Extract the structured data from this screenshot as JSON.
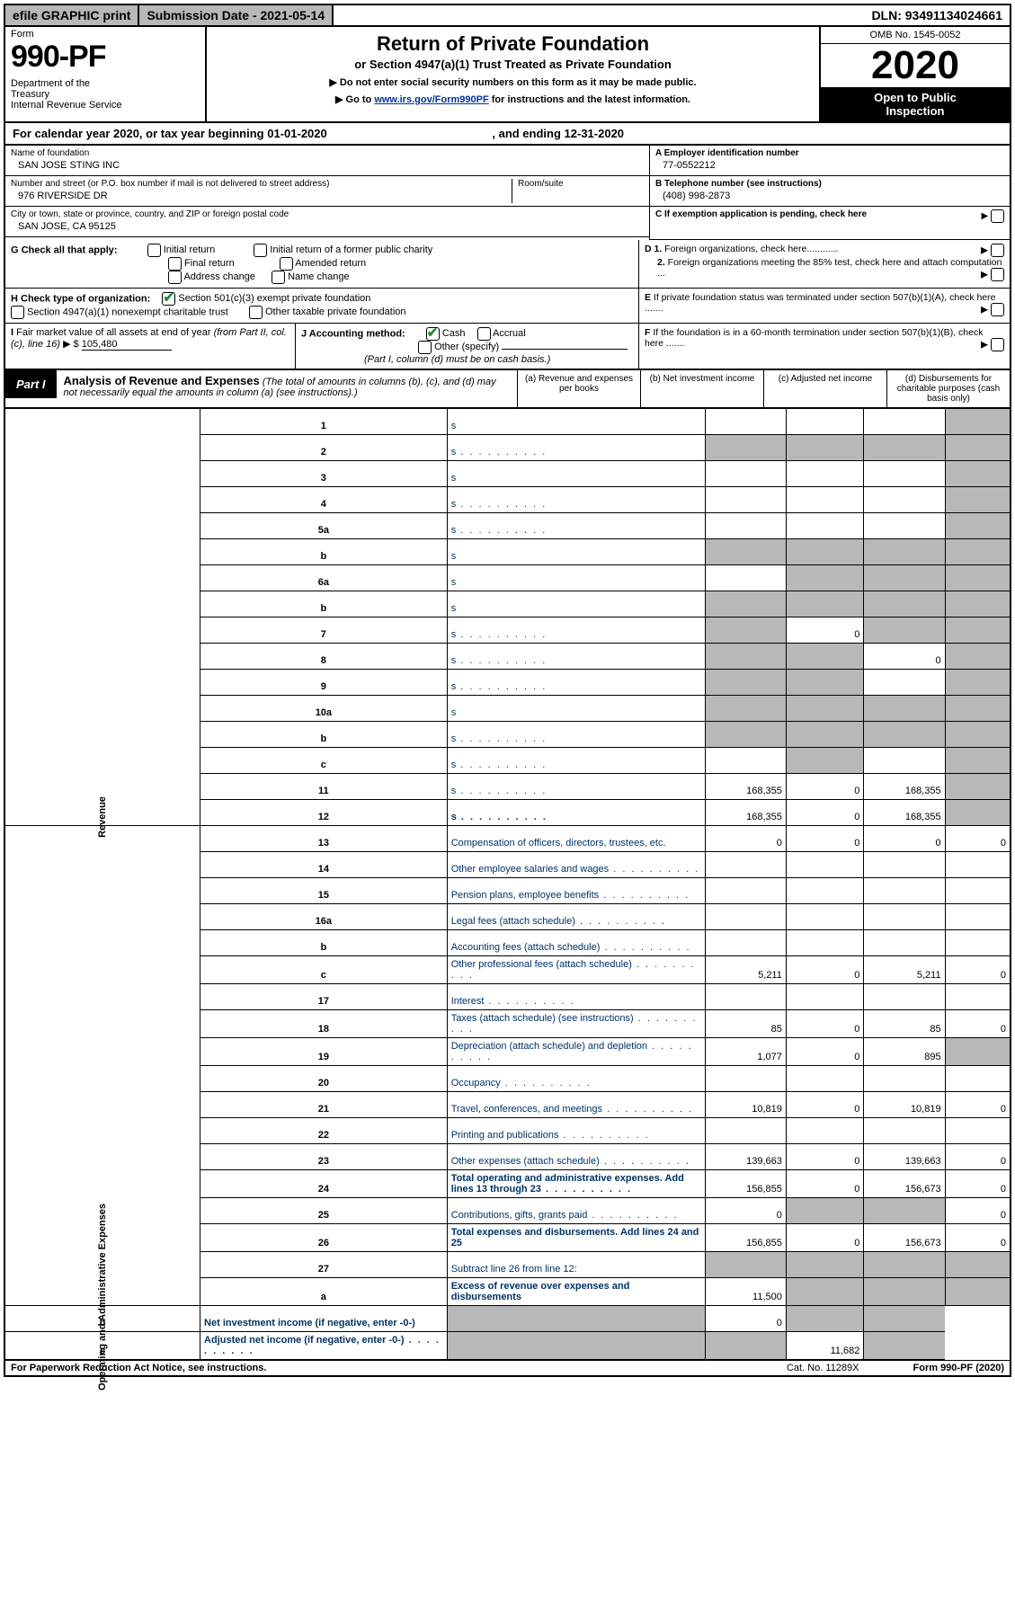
{
  "topbar": {
    "efile": "efile GRAPHIC print",
    "submission": "Submission Date - 2021-05-14",
    "dln": "DLN: 93491134024661"
  },
  "header": {
    "form_label": "Form",
    "form_num": "990-PF",
    "dept": "Department of the Treasury\nInternal Revenue Service",
    "title": "Return of Private Foundation",
    "subtitle": "or Section 4947(a)(1) Trust Treated as Private Foundation",
    "note1": "▶ Do not enter social security numbers on this form as it may be made public.",
    "note2_pre": "▶ Go to ",
    "note2_link": "www.irs.gov/Form990PF",
    "note2_post": " for instructions and the latest information.",
    "omb": "OMB No. 1545-0052",
    "year": "2020",
    "open": "Open to Public Inspection"
  },
  "cal": {
    "text_pre": "For calendar year 2020, or tax year beginning ",
    "begin": "01-01-2020",
    "mid": " , and ending ",
    "end": "12-31-2020"
  },
  "entity": {
    "name_label": "Name of foundation",
    "name": "SAN JOSE STING INC",
    "addr_label": "Number and street (or P.O. box number if mail is not delivered to street address)",
    "addr": "976 RIVERSIDE DR",
    "room_label": "Room/suite",
    "city_label": "City or town, state or province, country, and ZIP or foreign postal code",
    "city": "SAN JOSE, CA  95125",
    "a_label": "A Employer identification number",
    "a_val": "77-0552212",
    "b_label": "B Telephone number (see instructions)",
    "b_val": "(408) 998-2873",
    "c_label": "C If exemption application is pending, check here"
  },
  "g": {
    "label": "G Check all that apply:",
    "opts": [
      "Initial return",
      "Initial return of a former public charity",
      "Final return",
      "Amended return",
      "Address change",
      "Name change"
    ]
  },
  "d": {
    "d1": "D 1. Foreign organizations, check here............",
    "d2": "2. Foreign organizations meeting the 85% test, check here and attach computation ...",
    "e": "E  If private foundation status was terminated under section 507(b)(1)(A), check here .......",
    "f": "F  If the foundation is in a 60-month termination under section 507(b)(1)(B), check here ......."
  },
  "h": {
    "label": "H Check type of organization:",
    "o1": "Section 501(c)(3) exempt private foundation",
    "o2": "Section 4947(a)(1) nonexempt charitable trust",
    "o3": "Other taxable private foundation"
  },
  "i": {
    "label": "I Fair market value of all assets at end of year (from Part II, col. (c), line 16)",
    "arrow": "▶ $",
    "val": "105,480"
  },
  "j": {
    "label": "J Accounting method:",
    "cash": "Cash",
    "accrual": "Accrual",
    "other": "Other (specify)",
    "note": "(Part I, column (d) must be on cash basis.)"
  },
  "part1": {
    "label": "Part I",
    "title": "Analysis of Revenue and Expenses",
    "note": " (The total of amounts in columns (b), (c), and (d) may not necessarily equal the amounts in column (a) (see instructions).)",
    "cols": {
      "a": "(a)   Revenue and expenses per books",
      "b": "(b)   Net investment income",
      "c": "(c)   Adjusted net income",
      "d": "(d)   Disbursements for charitable purposes (cash basis only)"
    }
  },
  "vlabels": {
    "rev": "Revenue",
    "exp": "Operating and Administrative Expenses"
  },
  "rows": [
    {
      "n": "1",
      "d": "s",
      "a": "",
      "b": "",
      "c": ""
    },
    {
      "n": "2",
      "d": "s",
      "dots": true,
      "a": "s",
      "b": "s",
      "c": "s"
    },
    {
      "n": "3",
      "d": "s",
      "a": "",
      "b": "",
      "c": ""
    },
    {
      "n": "4",
      "d": "s",
      "dots": true,
      "a": "",
      "b": "",
      "c": ""
    },
    {
      "n": "5a",
      "d": "s",
      "dots": true,
      "a": "",
      "b": "",
      "c": ""
    },
    {
      "n": "b",
      "d": "s",
      "a": "s",
      "b": "s",
      "c": "s"
    },
    {
      "n": "6a",
      "d": "s",
      "a": "",
      "b": "s",
      "c": "s"
    },
    {
      "n": "b",
      "d": "s",
      "a": "s",
      "b": "s",
      "c": "s"
    },
    {
      "n": "7",
      "d": "s",
      "dots": true,
      "a": "s",
      "b": "0",
      "c": "s"
    },
    {
      "n": "8",
      "d": "s",
      "dots": true,
      "a": "s",
      "b": "s",
      "c": "0"
    },
    {
      "n": "9",
      "d": "s",
      "dots": true,
      "a": "s",
      "b": "s",
      "c": ""
    },
    {
      "n": "10a",
      "d": "s",
      "a": "s",
      "b": "s",
      "c": "s"
    },
    {
      "n": "b",
      "d": "s",
      "dots": true,
      "a": "s",
      "b": "s",
      "c": "s"
    },
    {
      "n": "c",
      "d": "s",
      "dots": true,
      "a": "",
      "b": "s",
      "c": ""
    },
    {
      "n": "11",
      "d": "s",
      "dots": true,
      "a": "168,355",
      "b": "0",
      "c": "168,355"
    },
    {
      "n": "12",
      "d": "s",
      "bold": true,
      "dots": true,
      "a": "168,355",
      "b": "0",
      "c": "168,355"
    },
    {
      "n": "13",
      "d": "Compensation of officers, directors, trustees, etc.",
      "a": "0",
      "b": "0",
      "c": "0",
      "dd": "0"
    },
    {
      "n": "14",
      "d": "Other employee salaries and wages",
      "dots": true,
      "a": "",
      "b": "",
      "c": "",
      "dd": ""
    },
    {
      "n": "15",
      "d": "Pension plans, employee benefits",
      "dots": true,
      "a": "",
      "b": "",
      "c": "",
      "dd": ""
    },
    {
      "n": "16a",
      "d": "Legal fees (attach schedule)",
      "dots": true,
      "a": "",
      "b": "",
      "c": "",
      "dd": ""
    },
    {
      "n": "b",
      "d": "Accounting fees (attach schedule)",
      "dots": true,
      "a": "",
      "b": "",
      "c": "",
      "dd": ""
    },
    {
      "n": "c",
      "d": "Other professional fees (attach schedule)",
      "dots": true,
      "a": "5,211",
      "b": "0",
      "c": "5,211",
      "dd": "0"
    },
    {
      "n": "17",
      "d": "Interest",
      "dots": true,
      "a": "",
      "b": "",
      "c": "",
      "dd": ""
    },
    {
      "n": "18",
      "d": "Taxes (attach schedule) (see instructions)",
      "dots": true,
      "a": "85",
      "b": "0",
      "c": "85",
      "dd": "0"
    },
    {
      "n": "19",
      "d": "Depreciation (attach schedule) and depletion",
      "dots": true,
      "a": "1,077",
      "b": "0",
      "c": "895",
      "dd": "s"
    },
    {
      "n": "20",
      "d": "Occupancy",
      "dots": true,
      "a": "",
      "b": "",
      "c": "",
      "dd": ""
    },
    {
      "n": "21",
      "d": "Travel, conferences, and meetings",
      "dots": true,
      "a": "10,819",
      "b": "0",
      "c": "10,819",
      "dd": "0"
    },
    {
      "n": "22",
      "d": "Printing and publications",
      "dots": true,
      "a": "",
      "b": "",
      "c": "",
      "dd": ""
    },
    {
      "n": "23",
      "d": "Other expenses (attach schedule)",
      "dots": true,
      "a": "139,663",
      "b": "0",
      "c": "139,663",
      "dd": "0"
    },
    {
      "n": "24",
      "d": "Total operating and administrative expenses. Add lines 13 through 23",
      "bold": true,
      "dots": true,
      "a": "156,855",
      "b": "0",
      "c": "156,673",
      "dd": "0"
    },
    {
      "n": "25",
      "d": "Contributions, gifts, grants paid",
      "dots": true,
      "a": "0",
      "b": "s",
      "c": "s",
      "dd": "0"
    },
    {
      "n": "26",
      "d": "Total expenses and disbursements. Add lines 24 and 25",
      "bold": true,
      "a": "156,855",
      "b": "0",
      "c": "156,673",
      "dd": "0"
    },
    {
      "n": "27",
      "d": "Subtract line 26 from line 12:",
      "a": "s",
      "b": "s",
      "c": "s",
      "dd": "s"
    },
    {
      "n": "a",
      "d": "Excess of revenue over expenses and disbursements",
      "bold": true,
      "a": "11,500",
      "b": "s",
      "c": "s",
      "dd": "s"
    },
    {
      "n": "b",
      "d": "Net investment income (if negative, enter -0-)",
      "bold": true,
      "a": "s",
      "b": "0",
      "c": "s",
      "dd": "s"
    },
    {
      "n": "c",
      "d": "Adjusted net income (if negative, enter -0-)",
      "bold": true,
      "dots": true,
      "a": "s",
      "b": "s",
      "c": "11,682",
      "dd": "s"
    }
  ],
  "footer": {
    "left": "For Paperwork Reduction Act Notice, see instructions.",
    "mid": "Cat. No. 11289X",
    "right": "Form 990-PF (2020)"
  }
}
